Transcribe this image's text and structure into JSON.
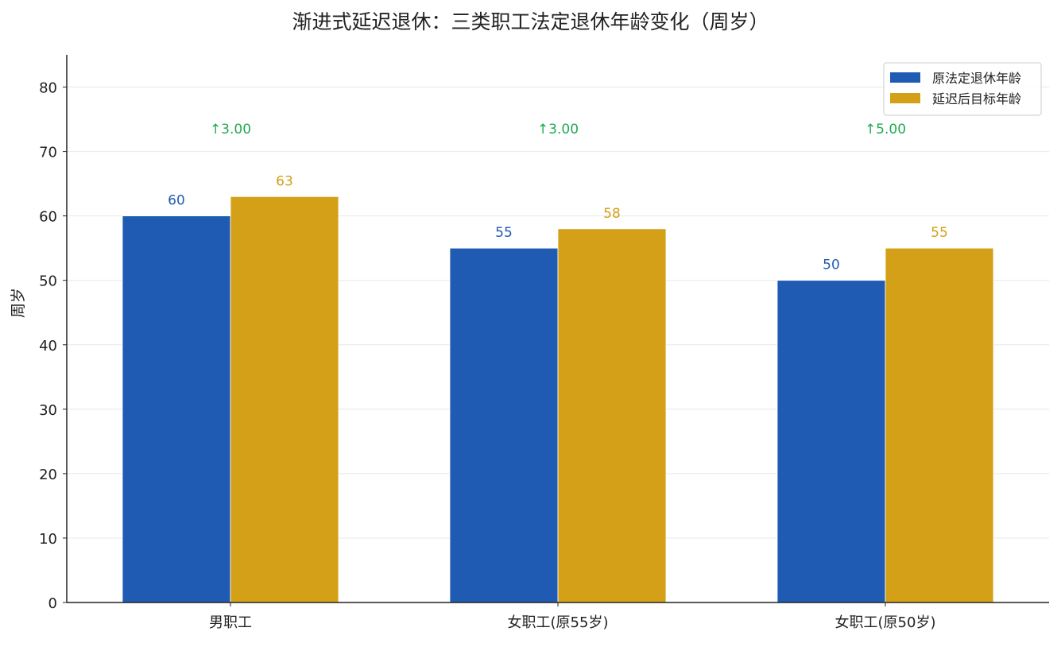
{
  "chart_data": {
    "type": "bar",
    "title": "渐进式延迟退休：三类职工法定退休年龄变化（周岁）",
    "xlabel": "",
    "ylabel": "周岁",
    "categories": [
      "男职工",
      "女职工(原55岁)",
      "女职工(原50岁)"
    ],
    "series": [
      {
        "name": "原法定退休年龄",
        "values": [
          60,
          55,
          50
        ],
        "color": "#1f5bb2"
      },
      {
        "name": "延迟后目标年龄",
        "values": [
          63,
          58,
          55
        ],
        "color": "#d4a017"
      }
    ],
    "increase_labels": [
      "↑3.00",
      "↑3.00",
      "↑5.00"
    ],
    "increase_color": "#22aa55",
    "ylim": [
      0,
      85
    ],
    "yticks": [
      0,
      10,
      20,
      30,
      40,
      50,
      60,
      70,
      80
    ],
    "grid": true,
    "legend_position": "top-right"
  }
}
